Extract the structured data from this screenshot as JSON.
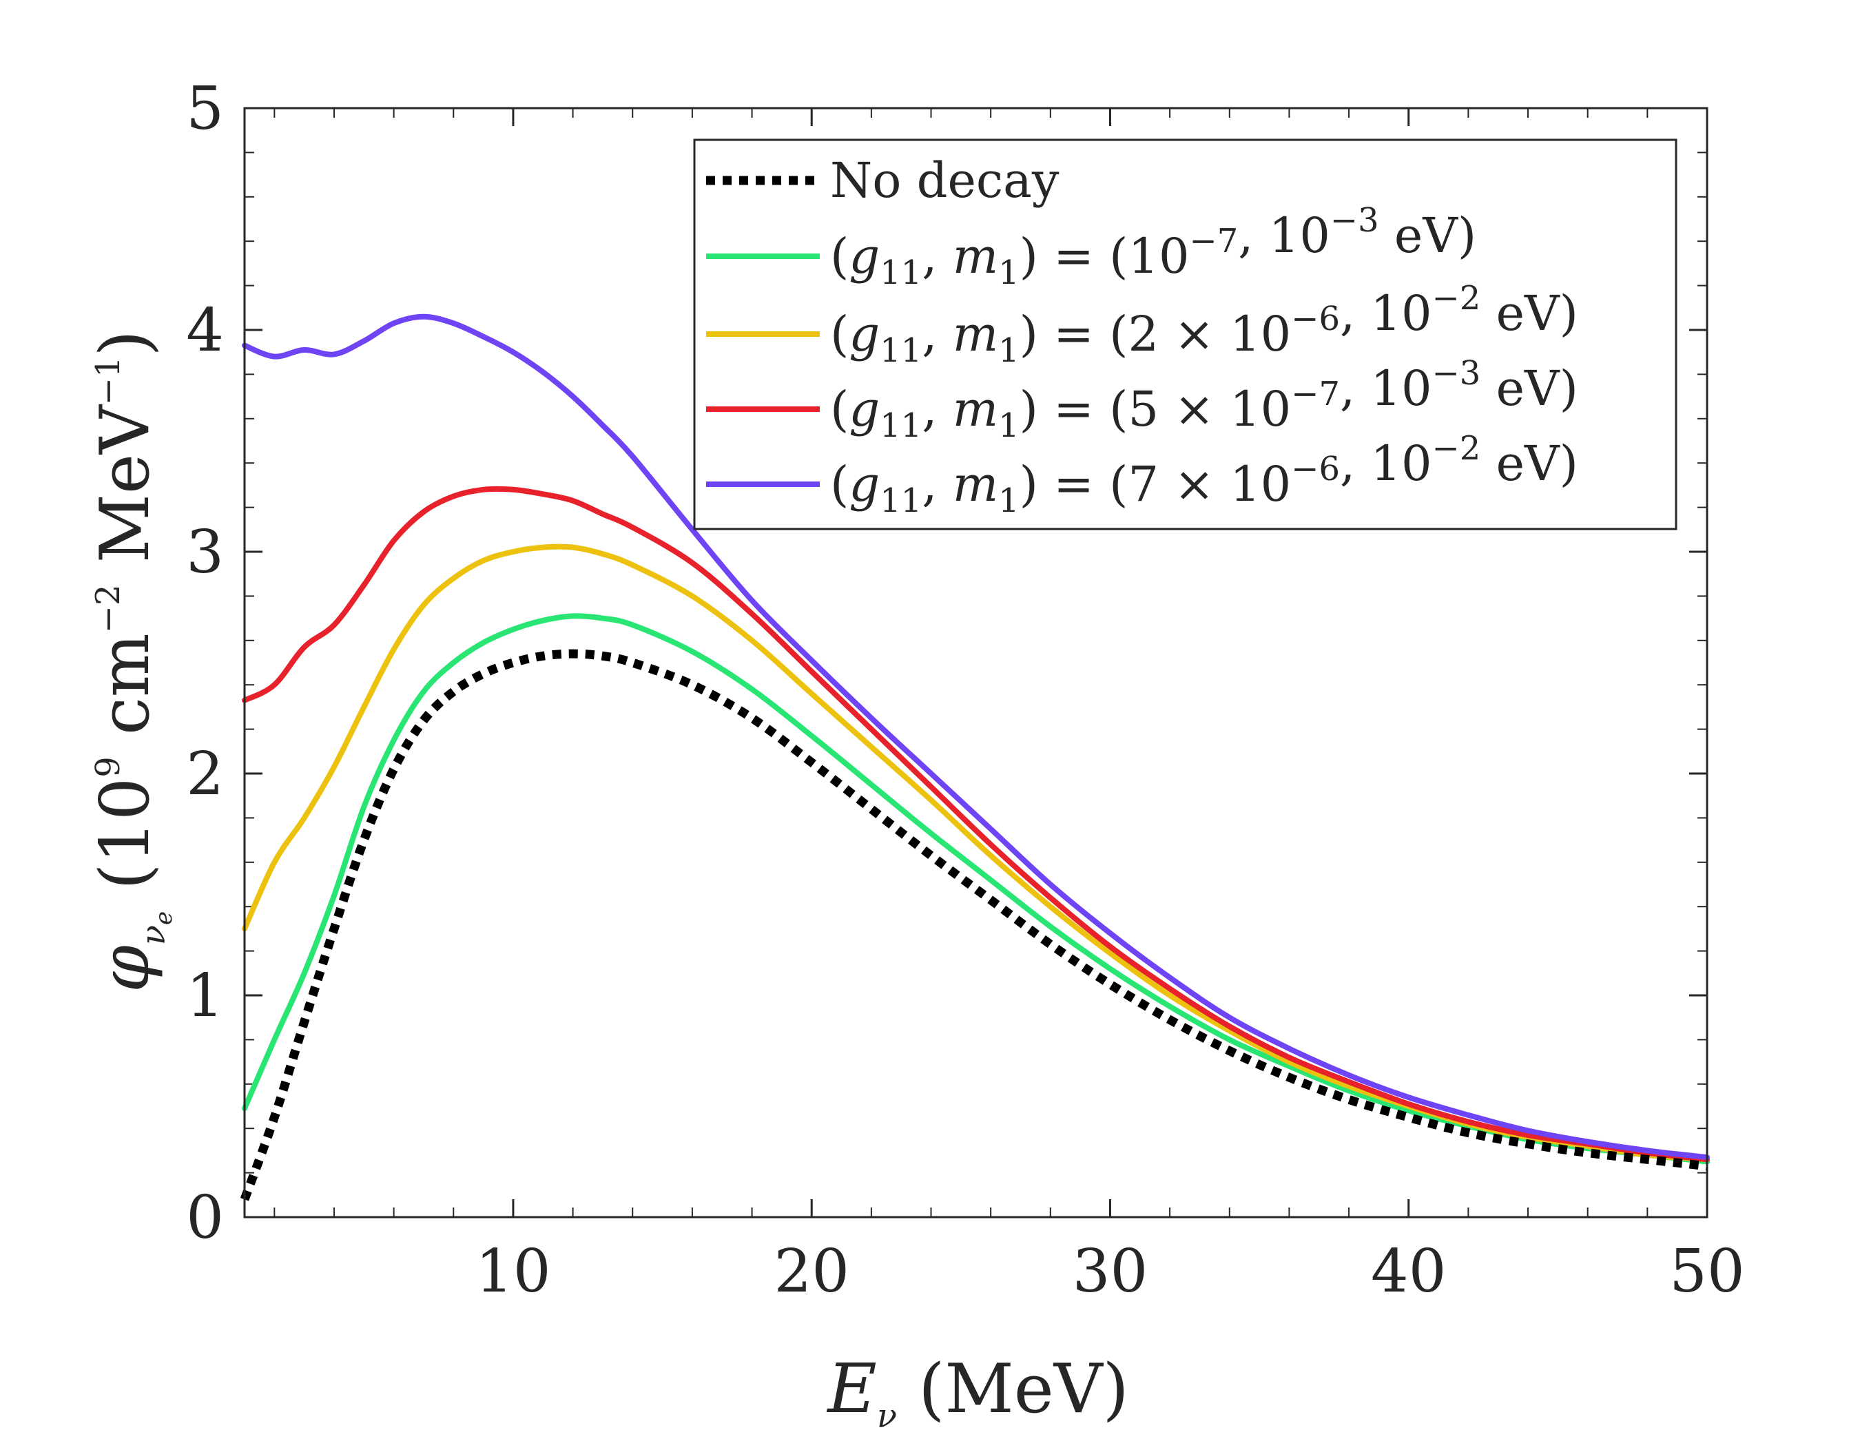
{
  "chart_data": {
    "type": "line",
    "xlabel": "E_ν (MeV)",
    "ylabel": "φ_νe (10^9 cm^-2 MeV^-1)",
    "xlim": [
      1,
      50
    ],
    "ylim": [
      0,
      5
    ],
    "xticks": [
      10,
      20,
      30,
      40,
      50
    ],
    "yticks": [
      0,
      1,
      2,
      3,
      4,
      5
    ],
    "legend_position": "top-right",
    "series": [
      {
        "name": "No decay",
        "color": "#000000",
        "style": "dotted",
        "x": [
          1,
          2,
          3,
          4,
          5,
          6,
          7,
          8,
          9,
          10,
          11,
          12,
          13,
          14,
          16,
          18,
          20,
          22,
          24,
          26,
          28,
          30,
          32,
          34,
          36,
          38,
          40,
          42,
          44,
          46,
          48,
          50
        ],
        "y": [
          0.08,
          0.45,
          0.88,
          1.3,
          1.7,
          2.02,
          2.24,
          2.37,
          2.45,
          2.5,
          2.53,
          2.54,
          2.53,
          2.5,
          2.4,
          2.25,
          2.05,
          1.84,
          1.63,
          1.43,
          1.23,
          1.05,
          0.89,
          0.75,
          0.63,
          0.53,
          0.45,
          0.38,
          0.33,
          0.29,
          0.26,
          0.23
        ]
      },
      {
        "name": "(g11, m1) = (10^-7, 10^-3 eV)",
        "color": "#29e573",
        "style": "solid",
        "x": [
          1,
          2,
          3,
          4,
          5,
          6,
          7,
          8,
          9,
          10,
          11,
          12,
          13,
          14,
          16,
          18,
          20,
          22,
          24,
          26,
          28,
          30,
          32,
          34,
          36,
          38,
          40,
          42,
          44,
          46,
          48,
          50
        ],
        "y": [
          0.49,
          0.8,
          1.1,
          1.45,
          1.85,
          2.15,
          2.37,
          2.5,
          2.59,
          2.65,
          2.69,
          2.71,
          2.7,
          2.67,
          2.55,
          2.38,
          2.17,
          1.95,
          1.73,
          1.52,
          1.31,
          1.12,
          0.95,
          0.8,
          0.68,
          0.57,
          0.48,
          0.41,
          0.35,
          0.31,
          0.28,
          0.25
        ]
      },
      {
        "name": "(g11, m1) = (2 × 10^-6, 10^-2 eV)",
        "color": "#edc20f",
        "style": "solid",
        "x": [
          1,
          2,
          3,
          4,
          5,
          6,
          7,
          8,
          9,
          10,
          11,
          12,
          13,
          14,
          16,
          18,
          20,
          22,
          24,
          26,
          28,
          30,
          32,
          34,
          36,
          38,
          40,
          42,
          44,
          46,
          48,
          50
        ],
        "y": [
          1.3,
          1.6,
          1.8,
          2.03,
          2.3,
          2.56,
          2.76,
          2.88,
          2.96,
          3.0,
          3.02,
          3.02,
          2.99,
          2.94,
          2.8,
          2.6,
          2.36,
          2.12,
          1.88,
          1.63,
          1.4,
          1.19,
          1.0,
          0.84,
          0.7,
          0.59,
          0.5,
          0.42,
          0.36,
          0.32,
          0.28,
          0.26
        ]
      },
      {
        "name": "(g11, m1) = (5 × 10^-7, 10^-3 eV)",
        "color": "#e8222a",
        "style": "solid",
        "x": [
          1,
          2,
          3,
          4,
          5,
          6,
          7,
          8,
          9,
          10,
          11,
          12,
          13,
          14,
          16,
          18,
          20,
          22,
          24,
          26,
          28,
          30,
          32,
          34,
          36,
          38,
          40,
          42,
          44,
          46,
          48,
          50
        ],
        "y": [
          2.33,
          2.4,
          2.57,
          2.67,
          2.85,
          3.05,
          3.18,
          3.25,
          3.28,
          3.28,
          3.26,
          3.23,
          3.17,
          3.11,
          2.95,
          2.72,
          2.46,
          2.2,
          1.94,
          1.68,
          1.44,
          1.22,
          1.03,
          0.86,
          0.72,
          0.61,
          0.51,
          0.43,
          0.37,
          0.33,
          0.29,
          0.26
        ]
      },
      {
        "name": "(g11, m1) = (7 × 10^-6, 10^-2 eV)",
        "color": "#6e44f5",
        "style": "solid",
        "x": [
          1,
          2,
          3,
          4,
          5,
          6,
          7,
          8,
          9,
          10,
          11,
          12,
          13,
          14,
          16,
          18,
          20,
          22,
          24,
          26,
          28,
          30,
          32,
          34,
          36,
          38,
          40,
          42,
          44,
          46,
          48,
          50
        ],
        "y": [
          3.93,
          3.88,
          3.91,
          3.89,
          3.95,
          4.03,
          4.06,
          4.03,
          3.97,
          3.9,
          3.81,
          3.7,
          3.57,
          3.43,
          3.1,
          2.78,
          2.51,
          2.25,
          2.0,
          1.75,
          1.5,
          1.28,
          1.08,
          0.9,
          0.76,
          0.64,
          0.54,
          0.46,
          0.39,
          0.34,
          0.3,
          0.27
        ]
      }
    ]
  }
}
